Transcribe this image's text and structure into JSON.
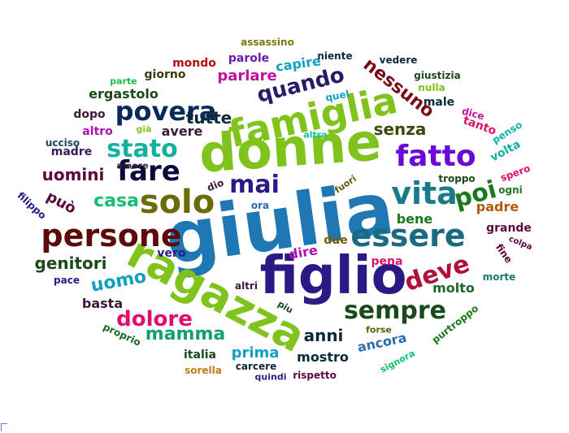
{
  "words": [
    {
      "text": "giulia",
      "color": "#1f77b4"
    },
    {
      "text": "donne",
      "color": "#7fc31c"
    },
    {
      "text": "figlio",
      "color": "#2a1a86"
    },
    {
      "text": "ragazza",
      "color": "#7fc31c"
    },
    {
      "text": "famiglia",
      "color": "#7fc31c"
    },
    {
      "text": "persone",
      "color": "#5c0a0a"
    },
    {
      "text": "essere",
      "color": "#1a6b82"
    },
    {
      "text": "vita",
      "color": "#1a7a8a"
    },
    {
      "text": "solo",
      "color": "#6b6b0a"
    },
    {
      "text": "fatto",
      "color": "#6a0ad8"
    },
    {
      "text": "povera",
      "color": "#0a2a5c"
    },
    {
      "text": "fare",
      "color": "#0a0a3a"
    },
    {
      "text": "stato",
      "color": "#12b0a0"
    },
    {
      "text": "mai",
      "color": "#2a1a86"
    },
    {
      "text": "sempre",
      "color": "#1a4a1a"
    },
    {
      "text": "deve",
      "color": "#b0103a"
    },
    {
      "text": "poi",
      "color": "#1a7a1a"
    },
    {
      "text": "dolore",
      "color": "#e0106a"
    },
    {
      "text": "quando",
      "color": "#2a1a6a"
    },
    {
      "text": "nessuno",
      "color": "#7a0a1a"
    },
    {
      "text": "mamma",
      "color": "#12a070"
    },
    {
      "text": "uomo",
      "color": "#12a0c0"
    },
    {
      "text": "anni",
      "color": "#0a2a3a"
    },
    {
      "text": "casa",
      "color": "#12c070"
    },
    {
      "text": "uomini",
      "color": "#5c0a3a"
    },
    {
      "text": "genitori",
      "color": "#1a4a1a"
    },
    {
      "text": "tutte",
      "color": "#0a2a3a"
    },
    {
      "text": "senza",
      "color": "#3a4a0a"
    },
    {
      "text": "può",
      "color": "#5c0a3a"
    },
    {
      "text": "parlare",
      "color": "#c010a0"
    },
    {
      "text": "molto",
      "color": "#1a6a2a"
    },
    {
      "text": "prima",
      "color": "#12a0c0"
    },
    {
      "text": "mostro",
      "color": "#0a2a3a"
    },
    {
      "text": "ancora",
      "color": "#2a6ab0"
    },
    {
      "text": "bene",
      "color": "#1a7a1a"
    },
    {
      "text": "padre",
      "color": "#b05a0a"
    },
    {
      "text": "dire",
      "color": "#b010b0"
    },
    {
      "text": "due",
      "color": "#7a5a0a"
    },
    {
      "text": "ergastolo",
      "color": "#1a4a1a"
    },
    {
      "text": "basta",
      "color": "#3a1a3a"
    },
    {
      "text": "avere",
      "color": "#3a1a3a"
    },
    {
      "text": "altro",
      "color": "#b010b0"
    },
    {
      "text": "dopo",
      "color": "#3a1a3a"
    },
    {
      "text": "madre",
      "color": "#3a1a5c"
    },
    {
      "text": "capire",
      "color": "#12a0c0"
    },
    {
      "text": "parole",
      "color": "#6a1ab0"
    },
    {
      "text": "mondo",
      "color": "#b01010"
    },
    {
      "text": "giorno",
      "color": "#3a3a0a"
    },
    {
      "text": "pena",
      "color": "#e0106a"
    },
    {
      "text": "vero",
      "color": "#2a1a86"
    },
    {
      "text": "pace",
      "color": "#2a1a86"
    },
    {
      "text": "morte",
      "color": "#1a7a6a"
    },
    {
      "text": "italia",
      "color": "#1a4a1a"
    },
    {
      "text": "carcere",
      "color": "#0a2a3a"
    },
    {
      "text": "altri",
      "color": "#3a1a3a"
    },
    {
      "text": "ora",
      "color": "#2a6ab0"
    },
    {
      "text": "grande",
      "color": "#5c0a3a"
    },
    {
      "text": "male",
      "color": "#0a2a3a"
    },
    {
      "text": "tanto",
      "color": "#e0106a"
    },
    {
      "text": "volta",
      "color": "#12b0a0"
    },
    {
      "text": "penso",
      "color": "#12b0a0"
    },
    {
      "text": "spero",
      "color": "#e0106a"
    },
    {
      "text": "ogni",
      "color": "#1a7a1a"
    },
    {
      "text": "purtroppo",
      "color": "#1a7a1a"
    },
    {
      "text": "forse",
      "color": "#5c5c0a"
    },
    {
      "text": "signora",
      "color": "#12c070"
    },
    {
      "text": "rispetto",
      "color": "#5c0a3a"
    },
    {
      "text": "quindi",
      "color": "#2a1a86"
    },
    {
      "text": "sorella",
      "color": "#c07a1a"
    },
    {
      "text": "proprio",
      "color": "#1a6a2a"
    },
    {
      "text": "piu",
      "color": "#1a4a1a"
    },
    {
      "text": "assassino",
      "color": "#7a7a0a"
    },
    {
      "text": "niente",
      "color": "#0a2a3a"
    },
    {
      "text": "vedere",
      "color": "#0a2a3a"
    },
    {
      "text": "giustizia",
      "color": "#1a4a1a"
    },
    {
      "text": "nulla",
      "color": "#7fc31c"
    },
    {
      "text": "quel",
      "color": "#12a0c0"
    },
    {
      "text": "dice",
      "color": "#c010a0"
    },
    {
      "text": "altra",
      "color": "#12c0a0"
    },
    {
      "text": "già",
      "color": "#7fc31c"
    },
    {
      "text": "amore",
      "color": "#3a1a3a"
    },
    {
      "text": "ucciso",
      "color": "#1a4a5c"
    },
    {
      "text": "parte",
      "color": "#12c040"
    },
    {
      "text": "filippo",
      "color": "#2a1a86"
    },
    {
      "text": "dio",
      "color": "#3a1a3a"
    },
    {
      "text": "fuori",
      "color": "#5c5c0a"
    },
    {
      "text": "troppo",
      "color": "#1a4a1a"
    },
    {
      "text": "colpa",
      "color": "#5c0a3a"
    },
    {
      "text": "fine",
      "color": "#5c0a3a"
    }
  ]
}
